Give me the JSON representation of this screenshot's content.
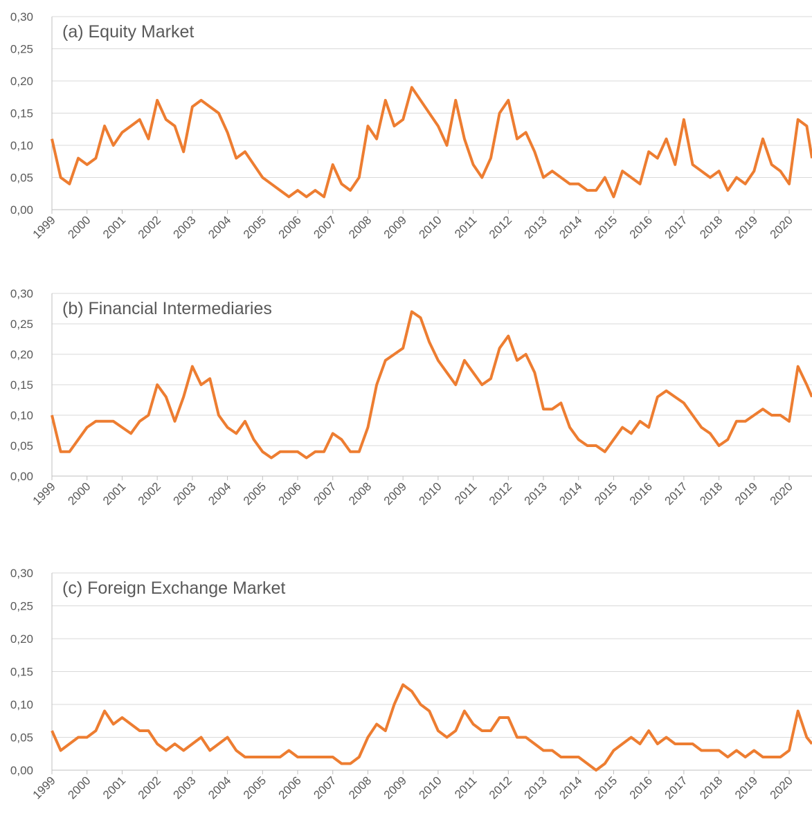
{
  "chart_data": [
    {
      "type": "line",
      "title": "(a) Equity Market",
      "x": [
        1999,
        1999.25,
        1999.5,
        1999.75,
        2000,
        2000.25,
        2000.5,
        2000.75,
        2001,
        2001.25,
        2001.5,
        2001.75,
        2002,
        2002.25,
        2002.5,
        2002.75,
        2003,
        2003.25,
        2003.5,
        2003.75,
        2004,
        2004.25,
        2004.5,
        2004.75,
        2005,
        2005.25,
        2005.5,
        2005.75,
        2006,
        2006.25,
        2006.5,
        2006.75,
        2007,
        2007.25,
        2007.5,
        2007.75,
        2008,
        2008.25,
        2008.5,
        2008.75,
        2009,
        2009.25,
        2009.5,
        2009.75,
        2010,
        2010.25,
        2010.5,
        2010.75,
        2011,
        2011.25,
        2011.5,
        2011.75,
        2012,
        2012.25,
        2012.5,
        2012.75,
        2013,
        2013.25,
        2013.5,
        2013.75,
        2014,
        2014.25,
        2014.5,
        2014.75,
        2015,
        2015.25,
        2015.5,
        2015.75,
        2016,
        2016.25,
        2016.5,
        2016.75,
        2017,
        2017.25,
        2017.5,
        2017.75,
        2018,
        2018.25,
        2018.5,
        2018.75,
        2019,
        2019.25,
        2019.5,
        2019.75,
        2020,
        2020.25,
        2020.5,
        2020.65
      ],
      "series": [
        {
          "color": "#ED7D31",
          "values": [
            0.11,
            0.05,
            0.04,
            0.08,
            0.07,
            0.08,
            0.13,
            0.1,
            0.12,
            0.13,
            0.14,
            0.11,
            0.17,
            0.14,
            0.13,
            0.09,
            0.16,
            0.17,
            0.16,
            0.15,
            0.12,
            0.08,
            0.09,
            0.07,
            0.05,
            0.04,
            0.03,
            0.02,
            0.03,
            0.02,
            0.03,
            0.02,
            0.07,
            0.04,
            0.03,
            0.05,
            0.13,
            0.11,
            0.17,
            0.13,
            0.14,
            0.19,
            0.17,
            0.15,
            0.13,
            0.1,
            0.17,
            0.11,
            0.07,
            0.05,
            0.08,
            0.15,
            0.17,
            0.11,
            0.12,
            0.09,
            0.05,
            0.06,
            0.05,
            0.04,
            0.04,
            0.03,
            0.03,
            0.05,
            0.02,
            0.06,
            0.05,
            0.04,
            0.09,
            0.08,
            0.11,
            0.07,
            0.14,
            0.07,
            0.06,
            0.05,
            0.06,
            0.03,
            0.05,
            0.04,
            0.06,
            0.11,
            0.07,
            0.06,
            0.04,
            0.14,
            0.13,
            0.08
          ]
        }
      ],
      "xlim": [
        1999,
        2020.65
      ],
      "xticks": [
        1999,
        2000,
        2001,
        2002,
        2003,
        2004,
        2005,
        2006,
        2007,
        2008,
        2009,
        2010,
        2011,
        2012,
        2013,
        2014,
        2015,
        2016,
        2017,
        2018,
        2019,
        2020
      ],
      "ylim": [
        0,
        0.3
      ],
      "yticks": [
        {
          "value": 0,
          "label": "0,00"
        },
        {
          "value": 0.05,
          "label": "0,05"
        },
        {
          "value": 0.1,
          "label": "0,10"
        },
        {
          "value": 0.15,
          "label": "0,15"
        },
        {
          "value": 0.2,
          "label": "0,20"
        },
        {
          "value": 0.25,
          "label": "0,25"
        },
        {
          "value": 0.3,
          "label": "0,30"
        }
      ],
      "grid": true
    },
    {
      "type": "line",
      "title": "(b) Financial Intermediaries",
      "x": [
        1999,
        1999.25,
        1999.5,
        1999.75,
        2000,
        2000.25,
        2000.5,
        2000.75,
        2001,
        2001.25,
        2001.5,
        2001.75,
        2002,
        2002.25,
        2002.5,
        2002.75,
        2003,
        2003.25,
        2003.5,
        2003.75,
        2004,
        2004.25,
        2004.5,
        2004.75,
        2005,
        2005.25,
        2005.5,
        2005.75,
        2006,
        2006.25,
        2006.5,
        2006.75,
        2007,
        2007.25,
        2007.5,
        2007.75,
        2008,
        2008.25,
        2008.5,
        2008.75,
        2009,
        2009.25,
        2009.5,
        2009.75,
        2010,
        2010.25,
        2010.5,
        2010.75,
        2011,
        2011.25,
        2011.5,
        2011.75,
        2012,
        2012.25,
        2012.5,
        2012.75,
        2013,
        2013.25,
        2013.5,
        2013.75,
        2014,
        2014.25,
        2014.5,
        2014.75,
        2015,
        2015.25,
        2015.5,
        2015.75,
        2016,
        2016.25,
        2016.5,
        2016.75,
        2017,
        2017.25,
        2017.5,
        2017.75,
        2018,
        2018.25,
        2018.5,
        2018.75,
        2019,
        2019.25,
        2019.5,
        2019.75,
        2020,
        2020.25,
        2020.5,
        2020.65
      ],
      "series": [
        {
          "color": "#ED7D31",
          "values": [
            0.1,
            0.04,
            0.04,
            0.06,
            0.08,
            0.09,
            0.09,
            0.09,
            0.08,
            0.07,
            0.09,
            0.1,
            0.15,
            0.13,
            0.09,
            0.13,
            0.18,
            0.15,
            0.16,
            0.1,
            0.08,
            0.07,
            0.09,
            0.06,
            0.04,
            0.03,
            0.04,
            0.04,
            0.04,
            0.03,
            0.04,
            0.04,
            0.07,
            0.06,
            0.04,
            0.04,
            0.08,
            0.15,
            0.19,
            0.2,
            0.21,
            0.27,
            0.26,
            0.22,
            0.19,
            0.17,
            0.15,
            0.19,
            0.17,
            0.15,
            0.16,
            0.21,
            0.23,
            0.19,
            0.2,
            0.17,
            0.11,
            0.11,
            0.12,
            0.08,
            0.06,
            0.05,
            0.05,
            0.04,
            0.06,
            0.08,
            0.07,
            0.09,
            0.08,
            0.13,
            0.14,
            0.13,
            0.12,
            0.1,
            0.08,
            0.07,
            0.05,
            0.06,
            0.09,
            0.09,
            0.1,
            0.11,
            0.1,
            0.1,
            0.09,
            0.18,
            0.15,
            0.13
          ]
        }
      ],
      "xlim": [
        1999,
        2020.65
      ],
      "xticks": [
        1999,
        2000,
        2001,
        2002,
        2003,
        2004,
        2005,
        2006,
        2007,
        2008,
        2009,
        2010,
        2011,
        2012,
        2013,
        2014,
        2015,
        2016,
        2017,
        2018,
        2019,
        2020
      ],
      "ylim": [
        0,
        0.3
      ],
      "yticks": [
        {
          "value": 0,
          "label": "0,00"
        },
        {
          "value": 0.05,
          "label": "0,05"
        },
        {
          "value": 0.1,
          "label": "0,10"
        },
        {
          "value": 0.15,
          "label": "0,15"
        },
        {
          "value": 0.2,
          "label": "0,20"
        },
        {
          "value": 0.25,
          "label": "0,25"
        },
        {
          "value": 0.3,
          "label": "0,30"
        }
      ],
      "grid": true
    },
    {
      "type": "line",
      "title": "(c) Foreign Exchange Market",
      "x": [
        1999,
        1999.25,
        1999.5,
        1999.75,
        2000,
        2000.25,
        2000.5,
        2000.75,
        2001,
        2001.25,
        2001.5,
        2001.75,
        2002,
        2002.25,
        2002.5,
        2002.75,
        2003,
        2003.25,
        2003.5,
        2003.75,
        2004,
        2004.25,
        2004.5,
        2004.75,
        2005,
        2005.25,
        2005.5,
        2005.75,
        2006,
        2006.25,
        2006.5,
        2006.75,
        2007,
        2007.25,
        2007.5,
        2007.75,
        2008,
        2008.25,
        2008.5,
        2008.75,
        2009,
        2009.25,
        2009.5,
        2009.75,
        2010,
        2010.25,
        2010.5,
        2010.75,
        2011,
        2011.25,
        2011.5,
        2011.75,
        2012,
        2012.25,
        2012.5,
        2012.75,
        2013,
        2013.25,
        2013.5,
        2013.75,
        2014,
        2014.25,
        2014.5,
        2014.75,
        2015,
        2015.25,
        2015.5,
        2015.75,
        2016,
        2016.25,
        2016.5,
        2016.75,
        2017,
        2017.25,
        2017.5,
        2017.75,
        2018,
        2018.25,
        2018.5,
        2018.75,
        2019,
        2019.25,
        2019.5,
        2019.75,
        2020,
        2020.25,
        2020.5,
        2020.65
      ],
      "series": [
        {
          "color": "#ED7D31",
          "values": [
            0.06,
            0.03,
            0.04,
            0.05,
            0.05,
            0.06,
            0.09,
            0.07,
            0.08,
            0.07,
            0.06,
            0.06,
            0.04,
            0.03,
            0.04,
            0.03,
            0.04,
            0.05,
            0.03,
            0.04,
            0.05,
            0.03,
            0.02,
            0.02,
            0.02,
            0.02,
            0.02,
            0.03,
            0.02,
            0.02,
            0.02,
            0.02,
            0.02,
            0.01,
            0.01,
            0.02,
            0.05,
            0.07,
            0.06,
            0.1,
            0.13,
            0.12,
            0.1,
            0.09,
            0.06,
            0.05,
            0.06,
            0.09,
            0.07,
            0.06,
            0.06,
            0.08,
            0.08,
            0.05,
            0.05,
            0.04,
            0.03,
            0.03,
            0.02,
            0.02,
            0.02,
            0.01,
            0.0,
            0.01,
            0.03,
            0.04,
            0.05,
            0.04,
            0.06,
            0.04,
            0.05,
            0.04,
            0.04,
            0.04,
            0.03,
            0.03,
            0.03,
            0.02,
            0.03,
            0.02,
            0.03,
            0.02,
            0.02,
            0.02,
            0.03,
            0.09,
            0.05,
            0.04
          ]
        }
      ],
      "xlim": [
        1999,
        2020.65
      ],
      "xticks": [
        1999,
        2000,
        2001,
        2002,
        2003,
        2004,
        2005,
        2006,
        2007,
        2008,
        2009,
        2010,
        2011,
        2012,
        2013,
        2014,
        2015,
        2016,
        2017,
        2018,
        2019,
        2020
      ],
      "ylim": [
        0,
        0.3
      ],
      "yticks": [
        {
          "value": 0,
          "label": "0,00"
        },
        {
          "value": 0.05,
          "label": "0,05"
        },
        {
          "value": 0.1,
          "label": "0,10"
        },
        {
          "value": 0.15,
          "label": "0,15"
        },
        {
          "value": 0.2,
          "label": "0,20"
        },
        {
          "value": 0.25,
          "label": "0,25"
        },
        {
          "value": 0.3,
          "label": "0,30"
        }
      ],
      "grid": true
    }
  ]
}
